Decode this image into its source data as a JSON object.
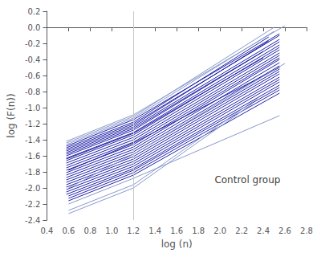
{
  "chart_data": {
    "type": "line",
    "xlabel": "log (n)",
    "ylabel": "log (F(n))",
    "xlim": [
      0.4,
      2.8
    ],
    "ylim": [
      -2.4,
      0.2
    ],
    "xticks": [
      0.4,
      0.6,
      0.8,
      {
        "value": 1.0,
        "label": "1.0"
      },
      1.2,
      1.4,
      1.6,
      1.8,
      {
        "value": 2.0,
        "label": "2.0"
      },
      2.2,
      2.4,
      2.6,
      2.8
    ],
    "yticks": [
      -2.4,
      -2.2,
      {
        "value": -2.0,
        "label": "-2.0"
      },
      -1.8,
      -1.6,
      -1.4,
      -1.2,
      {
        "value": -1.0,
        "label": "-1.0"
      },
      -0.8,
      -0.6,
      -0.4,
      -0.2,
      {
        "value": 0.0,
        "label": "0.0"
      },
      0.2
    ],
    "grid": false,
    "vline": {
      "x": 1.2,
      "color": "#c8c8c8"
    },
    "annotations": [
      {
        "text": "Control group",
        "x": 1.95,
        "y": -1.9
      }
    ],
    "series": [
      {
        "x": [
          0.58,
          1.2,
          2.55
        ],
        "values": [
          -1.48,
          -1.15,
          -0.08
        ],
        "color": "#2222aa"
      },
      {
        "x": [
          0.58,
          1.2,
          2.55
        ],
        "values": [
          -1.52,
          -1.2,
          -0.1
        ],
        "color": "#2222aa"
      },
      {
        "x": [
          0.58,
          1.2,
          2.55
        ],
        "values": [
          -1.56,
          -1.24,
          -0.15
        ],
        "color": "#2222aa"
      },
      {
        "x": [
          0.58,
          1.2,
          2.55
        ],
        "values": [
          -1.6,
          -1.28,
          -0.18
        ],
        "color": "#2222aa"
      },
      {
        "x": [
          0.58,
          1.2,
          2.55
        ],
        "values": [
          -1.63,
          -1.31,
          -0.22
        ],
        "color": "#2222aa"
      },
      {
        "x": [
          0.58,
          1.2,
          2.55
        ],
        "values": [
          -1.66,
          -1.34,
          -0.25
        ],
        "color": "#2222aa"
      },
      {
        "x": [
          0.58,
          1.2,
          2.55
        ],
        "values": [
          -1.69,
          -1.37,
          -0.28
        ],
        "color": "#2222aa"
      },
      {
        "x": [
          0.58,
          1.2,
          2.55
        ],
        "values": [
          -1.72,
          -1.4,
          -0.32
        ],
        "color": "#2222aa"
      },
      {
        "x": [
          0.58,
          1.2,
          2.55
        ],
        "values": [
          -1.75,
          -1.43,
          -0.35
        ],
        "color": "#2222aa"
      },
      {
        "x": [
          0.58,
          1.2,
          2.55
        ],
        "values": [
          -1.78,
          -1.46,
          -0.38
        ],
        "color": "#2222aa"
      },
      {
        "x": [
          0.58,
          1.2,
          2.55
        ],
        "values": [
          -1.81,
          -1.49,
          -0.4
        ],
        "color": "#2222aa"
      },
      {
        "x": [
          0.58,
          1.2,
          2.55
        ],
        "values": [
          -1.84,
          -1.52,
          -0.44
        ],
        "color": "#2222aa"
      },
      {
        "x": [
          0.58,
          1.2,
          2.55
        ],
        "values": [
          -1.87,
          -1.55,
          -0.48
        ],
        "color": "#2222aa"
      },
      {
        "x": [
          0.58,
          1.2,
          2.55
        ],
        "values": [
          -1.9,
          -1.58,
          -0.52
        ],
        "color": "#2222aa"
      },
      {
        "x": [
          0.58,
          1.2,
          2.55
        ],
        "values": [
          -1.93,
          -1.61,
          -0.55
        ],
        "color": "#2222aa"
      },
      {
        "x": [
          0.58,
          1.2,
          2.55
        ],
        "values": [
          -1.96,
          -1.64,
          -0.58
        ],
        "color": "#2222aa"
      },
      {
        "x": [
          0.58,
          1.2,
          2.55
        ],
        "values": [
          -1.99,
          -1.67,
          -0.62
        ],
        "color": "#2222aa"
      },
      {
        "x": [
          0.58,
          1.2,
          2.55
        ],
        "values": [
          -2.02,
          -1.7,
          -0.65
        ],
        "color": "#2222aa"
      },
      {
        "x": [
          0.58,
          1.2,
          2.55
        ],
        "values": [
          -2.05,
          -1.73,
          -0.68
        ],
        "color": "#2222aa"
      },
      {
        "x": [
          0.58,
          1.2,
          2.55
        ],
        "values": [
          -2.08,
          -1.76,
          -0.72
        ],
        "color": "#2222aa"
      },
      {
        "x": [
          0.58,
          1.2,
          2.5
        ],
        "values": [
          -1.46,
          -1.13,
          -0.05
        ],
        "color": "#8899cc"
      },
      {
        "x": [
          0.58,
          1.2,
          2.5
        ],
        "values": [
          -1.44,
          -1.11,
          0.0
        ],
        "color": "#8899cc"
      },
      {
        "x": [
          0.58,
          1.2,
          2.6
        ],
        "values": [
          -1.42,
          -1.09,
          0.02
        ],
        "color": "#8899cc"
      },
      {
        "x": [
          0.58,
          1.2,
          2.45
        ],
        "values": [
          -1.5,
          -1.18,
          -0.12
        ],
        "color": "#2222aa"
      },
      {
        "x": [
          0.58,
          1.2,
          2.45
        ],
        "values": [
          -1.54,
          -1.22,
          -0.17
        ],
        "color": "#2222aa"
      },
      {
        "x": [
          0.58,
          1.2,
          2.4
        ],
        "values": [
          -1.58,
          -1.26,
          -0.3
        ],
        "color": "#2222aa"
      },
      {
        "x": [
          0.58,
          1.2,
          2.4
        ],
        "values": [
          -1.64,
          -1.32,
          -0.38
        ],
        "color": "#2222aa"
      },
      {
        "x": [
          0.6,
          1.2,
          2.55
        ],
        "values": [
          -2.1,
          -1.78,
          -0.75
        ],
        "color": "#2222aa"
      },
      {
        "x": [
          0.6,
          1.2,
          2.55
        ],
        "values": [
          -2.13,
          -1.81,
          -0.78
        ],
        "color": "#2222aa"
      },
      {
        "x": [
          0.6,
          1.2,
          2.55
        ],
        "values": [
          -2.16,
          -1.84,
          -0.82
        ],
        "color": "#2222aa"
      },
      {
        "x": [
          0.6,
          1.2,
          2.35
        ],
        "values": [
          -2.28,
          -1.96,
          -0.88
        ],
        "color": "#8899cc"
      },
      {
        "x": [
          0.6,
          1.2,
          2.3
        ],
        "values": [
          -2.32,
          -2.0,
          -0.95
        ],
        "color": "#8899cc"
      },
      {
        "x": [
          0.6,
          1.2,
          2.55
        ],
        "values": [
          -1.78,
          -1.44,
          -0.5
        ],
        "color": "#2222aa"
      },
      {
        "x": [
          0.6,
          1.2,
          2.55
        ],
        "values": [
          -2.2,
          -1.88,
          -1.1
        ],
        "color": "#8899cc"
      },
      {
        "x": [
          0.6,
          1.2,
          2.6
        ],
        "values": [
          -2.0,
          -1.58,
          -0.45
        ],
        "color": "#8899cc"
      }
    ]
  }
}
